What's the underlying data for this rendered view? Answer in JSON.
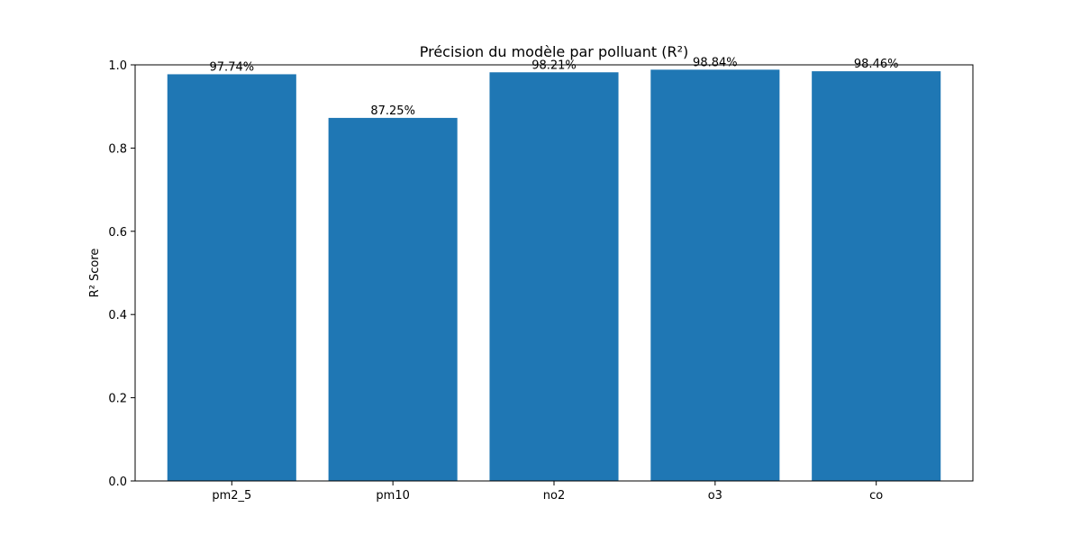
{
  "chart_data": {
    "type": "bar",
    "title": "Précision du modèle par polluant (R²)",
    "xlabel": "",
    "ylabel": "R² Score",
    "categories": [
      "pm2_5",
      "pm10",
      "no2",
      "o3",
      "co"
    ],
    "values": [
      0.9774,
      0.8725,
      0.9821,
      0.9884,
      0.9846
    ],
    "data_labels": [
      "97.74%",
      "87.25%",
      "98.21%",
      "98.84%",
      "98.46%"
    ],
    "ylim": [
      0,
      1.0
    ],
    "yticks": [
      0.0,
      0.2,
      0.4,
      0.6,
      0.8,
      1.0
    ],
    "ytick_labels": [
      "0.0",
      "0.2",
      "0.4",
      "0.6",
      "0.8",
      "1.0"
    ],
    "grid": false,
    "colors": {
      "bar": "#1f77b4",
      "axis": "#000000",
      "background": "#ffffff"
    }
  }
}
